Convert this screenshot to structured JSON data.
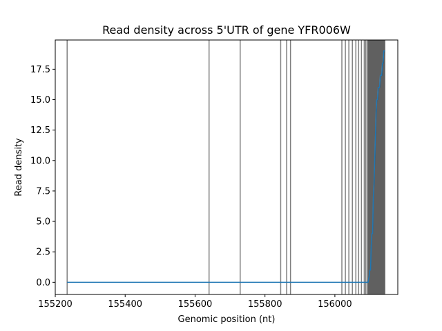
{
  "chart_data": {
    "type": "line",
    "title": "Read density across 5'UTR of gene YFR006W",
    "xlabel": "Genomic position (nt)",
    "ylabel": "Read density",
    "xlim": [
      155200,
      156180
    ],
    "ylim": [
      -1.0,
      19.9
    ],
    "xticks": [
      155200,
      155400,
      155600,
      155800,
      156000
    ],
    "xtick_labels": [
      "155200",
      "155400",
      "155600",
      "155800",
      "156000"
    ],
    "yticks": [
      0.0,
      2.5,
      5.0,
      7.5,
      10.0,
      12.5,
      15.0,
      17.5
    ],
    "ytick_labels": [
      "0.0",
      "2.5",
      "5.0",
      "7.5",
      "10.0",
      "12.5",
      "15.0",
      "17.5"
    ],
    "grid": false,
    "series": [
      {
        "color": "#1f77b4",
        "x": [
          155234,
          156095,
          156098,
          156100,
          156102,
          156104,
          156106,
          156108,
          156110,
          156112,
          156114,
          156116,
          156118,
          156120,
          156122,
          156124,
          156126,
          156128,
          156130,
          156132,
          156134,
          156136,
          156138,
          156140,
          156143
        ],
        "y": [
          0,
          0,
          0.5,
          1,
          1,
          3,
          4,
          4,
          7,
          8,
          10,
          12,
          14,
          15,
          15,
          16,
          16,
          16,
          17,
          17,
          17,
          18,
          18,
          19,
          19
        ]
      }
    ],
    "vlines": {
      "color": "#000000",
      "opacity": 0.5,
      "x": [
        155234,
        155640,
        155729,
        155845,
        155862,
        155873,
        156020,
        156030,
        156040,
        156050,
        156060,
        156068,
        156076,
        156084,
        156088,
        156092,
        156095,
        156097,
        156099,
        156101,
        156103,
        156105,
        156107,
        156109,
        156111,
        156113,
        156115,
        156117,
        156119,
        156121,
        156123,
        156125,
        156127,
        156129,
        156131,
        156133,
        156135,
        156137,
        156139,
        156141,
        156143
      ]
    }
  }
}
